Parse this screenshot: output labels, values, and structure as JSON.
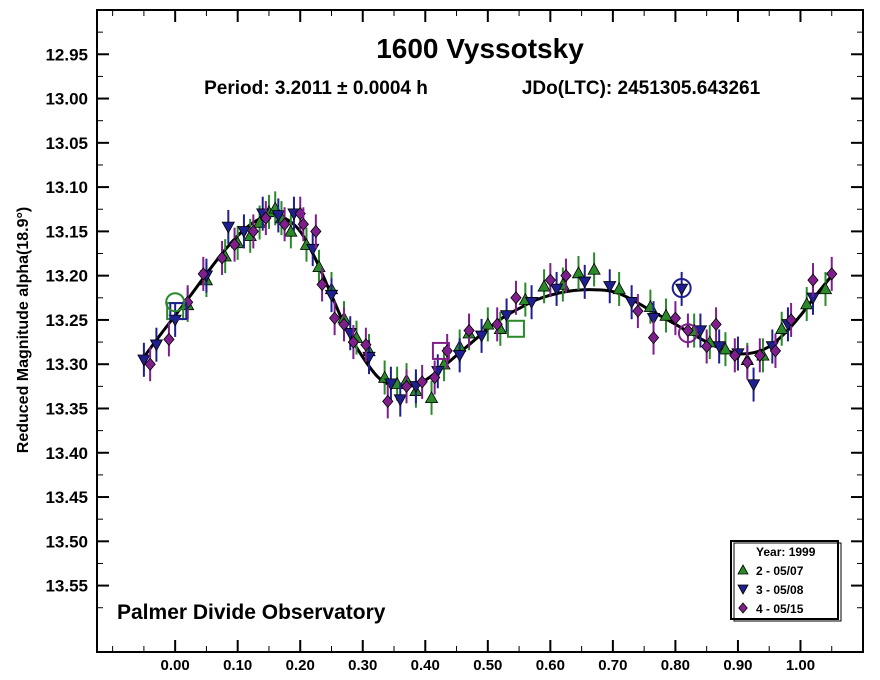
{
  "chart_data": {
    "type": "scatter",
    "title": "1600 Vyssotsky",
    "subtitle_period": "Period: 3.2011 ± 0.0004 h",
    "subtitle_epoch": "JDo(LTC): 2451305.643261",
    "ylabel": "Reduced Magnitude alpha(18.9°)",
    "annotation": "Palmer Divide Observatory",
    "xlim": [
      -0.125,
      1.1
    ],
    "ylim": [
      12.9,
      13.625
    ],
    "y_inverted": true,
    "x_ticks": [
      "0.00",
      "0.10",
      "0.20",
      "0.30",
      "0.40",
      "0.50",
      "0.60",
      "0.70",
      "0.80",
      "0.90",
      "1.00"
    ],
    "y_ticks": [
      "12.95",
      "13.00",
      "13.05",
      "13.10",
      "13.15",
      "13.20",
      "13.25",
      "13.30",
      "13.35",
      "13.40",
      "13.45",
      "13.50",
      "13.55"
    ],
    "legend": {
      "title": "Year: 1999",
      "position": "bottom-right",
      "entries": [
        "2 - 05/07",
        "3 - 05/08",
        "4 - 05/15"
      ]
    },
    "colors": {
      "s2": "#2a8a2a",
      "s3": "#1f1f8f",
      "s4": "#7e1f8c",
      "curve": "#000000"
    },
    "curve": [
      [
        -0.05,
        13.292
      ],
      [
        -0.025,
        13.268
      ],
      [
        0.0,
        13.245
      ],
      [
        0.025,
        13.222
      ],
      [
        0.05,
        13.198
      ],
      [
        0.075,
        13.175
      ],
      [
        0.1,
        13.155
      ],
      [
        0.125,
        13.14
      ],
      [
        0.15,
        13.132
      ],
      [
        0.175,
        13.135
      ],
      [
        0.2,
        13.15
      ],
      [
        0.225,
        13.182
      ],
      [
        0.25,
        13.222
      ],
      [
        0.275,
        13.262
      ],
      [
        0.3,
        13.292
      ],
      [
        0.325,
        13.315
      ],
      [
        0.35,
        13.325
      ],
      [
        0.375,
        13.325
      ],
      [
        0.4,
        13.318
      ],
      [
        0.425,
        13.305
      ],
      [
        0.45,
        13.29
      ],
      [
        0.475,
        13.275
      ],
      [
        0.5,
        13.26
      ],
      [
        0.525,
        13.247
      ],
      [
        0.55,
        13.237
      ],
      [
        0.575,
        13.228
      ],
      [
        0.6,
        13.222
      ],
      [
        0.625,
        13.218
      ],
      [
        0.65,
        13.216
      ],
      [
        0.675,
        13.216
      ],
      [
        0.7,
        13.218
      ],
      [
        0.725,
        13.225
      ],
      [
        0.75,
        13.235
      ],
      [
        0.775,
        13.245
      ],
      [
        0.8,
        13.255
      ],
      [
        0.825,
        13.265
      ],
      [
        0.85,
        13.275
      ],
      [
        0.875,
        13.283
      ],
      [
        0.9,
        13.288
      ],
      [
        0.925,
        13.287
      ],
      [
        0.95,
        13.28
      ],
      [
        0.975,
        13.265
      ],
      [
        1.0,
        13.245
      ],
      [
        1.025,
        13.222
      ],
      [
        1.05,
        13.2
      ]
    ],
    "series": [
      {
        "name": "2 - 05/07",
        "marker": "triangle-up",
        "points": [
          [
            0.02,
            13.233
          ],
          [
            0.05,
            13.205
          ],
          [
            0.08,
            13.178
          ],
          [
            0.1,
            13.163
          ],
          [
            0.12,
            13.155
          ],
          [
            0.135,
            13.14
          ],
          [
            0.15,
            13.128
          ],
          [
            0.16,
            13.124
          ],
          [
            0.17,
            13.135
          ],
          [
            0.185,
            13.15
          ],
          [
            0.21,
            13.165
          ],
          [
            0.23,
            13.19
          ],
          [
            0.25,
            13.215
          ],
          [
            0.27,
            13.248
          ],
          [
            0.29,
            13.27
          ],
          [
            0.31,
            13.285
          ],
          [
            0.335,
            13.315
          ],
          [
            0.355,
            13.322
          ],
          [
            0.37,
            13.318
          ],
          [
            0.385,
            13.33
          ],
          [
            0.41,
            13.338
          ],
          [
            0.43,
            13.3
          ],
          [
            0.455,
            13.28
          ],
          [
            0.47,
            13.265
          ],
          [
            0.5,
            13.255
          ],
          [
            0.52,
            13.26
          ],
          [
            0.56,
            13.227
          ],
          [
            0.59,
            13.212
          ],
          [
            0.62,
            13.21
          ],
          [
            0.645,
            13.197
          ],
          [
            0.67,
            13.193
          ],
          [
            0.71,
            13.215
          ],
          [
            0.76,
            13.235
          ],
          [
            0.785,
            13.245
          ],
          [
            0.83,
            13.262
          ],
          [
            0.855,
            13.275
          ],
          [
            0.88,
            13.283
          ],
          [
            0.915,
            13.295
          ],
          [
            0.94,
            13.29
          ],
          [
            0.97,
            13.26
          ],
          [
            1.01,
            13.232
          ],
          [
            1.04,
            13.215
          ]
        ]
      },
      {
        "name": "3 - 05/08",
        "marker": "triangle-down",
        "points": [
          [
            -0.05,
            13.295
          ],
          [
            -0.03,
            13.278
          ],
          [
            0.0,
            13.25
          ],
          [
            0.05,
            13.2
          ],
          [
            0.085,
            13.145
          ],
          [
            0.11,
            13.15
          ],
          [
            0.14,
            13.13
          ],
          [
            0.165,
            13.132
          ],
          [
            0.19,
            13.13
          ],
          [
            0.22,
            13.17
          ],
          [
            0.25,
            13.222
          ],
          [
            0.28,
            13.265
          ],
          [
            0.31,
            13.292
          ],
          [
            0.345,
            13.322
          ],
          [
            0.36,
            13.34
          ],
          [
            0.385,
            13.325
          ],
          [
            0.42,
            13.308
          ],
          [
            0.455,
            13.29
          ],
          [
            0.49,
            13.268
          ],
          [
            0.53,
            13.245
          ],
          [
            0.57,
            13.23
          ],
          [
            0.61,
            13.215
          ],
          [
            0.655,
            13.207
          ],
          [
            0.695,
            13.212
          ],
          [
            0.73,
            13.23
          ],
          [
            0.765,
            13.248
          ],
          [
            0.81,
            13.215
          ],
          [
            0.84,
            13.262
          ],
          [
            0.87,
            13.28
          ],
          [
            0.9,
            13.288
          ],
          [
            0.925,
            13.323
          ],
          [
            0.955,
            13.28
          ],
          [
            0.98,
            13.255
          ],
          [
            1.02,
            13.225
          ]
        ]
      },
      {
        "name": "4 - 05/15",
        "marker": "diamond",
        "points": [
          [
            -0.04,
            13.3
          ],
          [
            -0.01,
            13.272
          ],
          [
            0.02,
            13.23
          ],
          [
            0.045,
            13.198
          ],
          [
            0.075,
            13.18
          ],
          [
            0.095,
            13.165
          ],
          [
            0.125,
            13.15
          ],
          [
            0.145,
            13.135
          ],
          [
            0.175,
            13.142
          ],
          [
            0.2,
            13.13
          ],
          [
            0.205,
            13.142
          ],
          [
            0.225,
            13.15
          ],
          [
            0.235,
            13.21
          ],
          [
            0.255,
            13.248
          ],
          [
            0.27,
            13.255
          ],
          [
            0.285,
            13.275
          ],
          [
            0.305,
            13.278
          ],
          [
            0.34,
            13.342
          ],
          [
            0.37,
            13.325
          ],
          [
            0.395,
            13.32
          ],
          [
            0.415,
            13.315
          ],
          [
            0.435,
            13.285
          ],
          [
            0.47,
            13.262
          ],
          [
            0.515,
            13.255
          ],
          [
            0.545,
            13.225
          ],
          [
            0.6,
            13.205
          ],
          [
            0.625,
            13.2
          ],
          [
            0.74,
            13.24
          ],
          [
            0.765,
            13.27
          ],
          [
            0.8,
            13.248
          ],
          [
            0.82,
            13.262
          ],
          [
            0.85,
            13.28
          ],
          [
            0.865,
            13.255
          ],
          [
            0.895,
            13.29
          ],
          [
            0.915,
            13.298
          ],
          [
            0.935,
            13.29
          ],
          [
            0.96,
            13.285
          ],
          [
            0.985,
            13.25
          ],
          [
            1.02,
            13.205
          ],
          [
            1.05,
            13.198
          ]
        ]
      }
    ],
    "highlighted": [
      {
        "series": "2 - 05/07",
        "marker": "square",
        "x": 0.0,
        "y": 13.24
      },
      {
        "series": "2 - 05/07",
        "marker": "square",
        "x": 0.545,
        "y": 13.26
      },
      {
        "series": "3 - 05/08",
        "marker": "square",
        "x": 0.005,
        "y": 13.24
      },
      {
        "series": "4 - 05/15",
        "marker": "square",
        "x": 0.425,
        "y": 13.285
      },
      {
        "series": "2 - 05/07",
        "marker": "circle",
        "x": 0.0,
        "y": 13.23
      },
      {
        "series": "3 - 05/08",
        "marker": "circle",
        "x": 0.81,
        "y": 13.214
      },
      {
        "series": "4 - 05/15",
        "marker": "circle",
        "x": 0.82,
        "y": 13.265
      }
    ]
  }
}
